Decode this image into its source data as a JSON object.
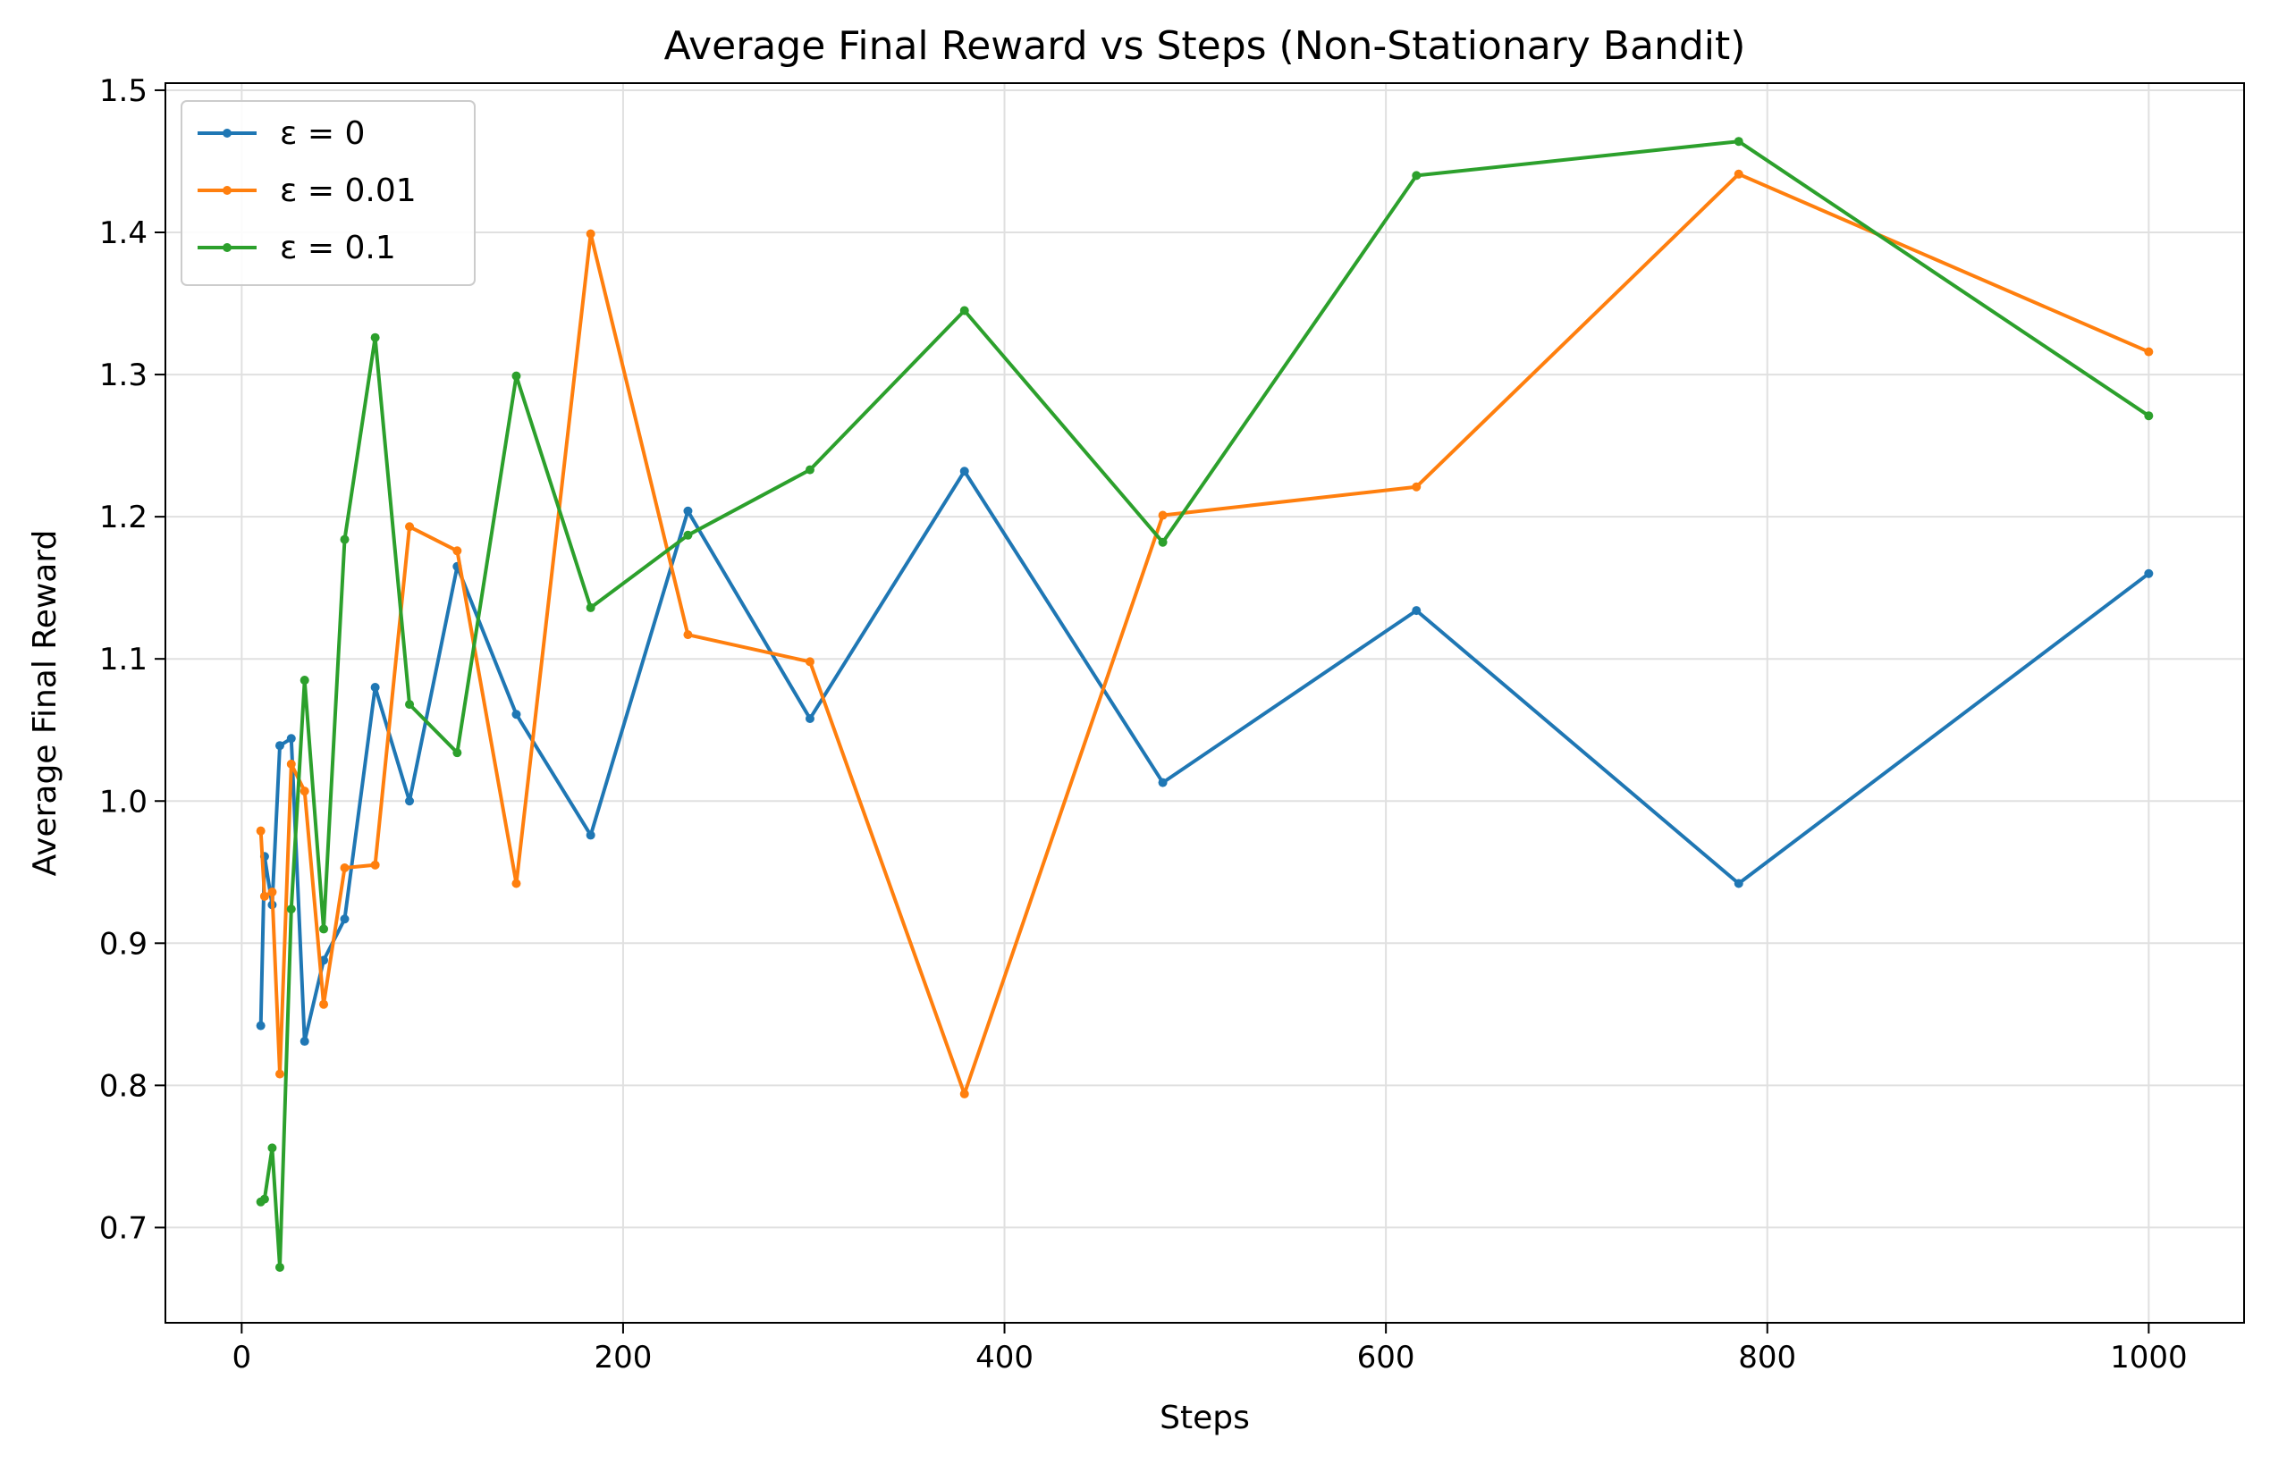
{
  "chart_data": {
    "type": "line",
    "title": "Average Final Reward vs Steps (Non-Stationary Bandit)",
    "xlabel": "Steps",
    "ylabel": "Average Final Reward",
    "xlim": [
      -40,
      1050
    ],
    "ylim": [
      0.633,
      1.505
    ],
    "xticks": [
      0,
      200,
      400,
      600,
      800,
      1000
    ],
    "xtick_labels": [
      "0",
      "200",
      "400",
      "600",
      "800",
      "1000"
    ],
    "yticks": [
      0.7,
      0.8,
      0.9,
      1.0,
      1.1,
      1.2,
      1.3,
      1.4,
      1.5
    ],
    "ytick_labels": [
      "0.7",
      "0.8",
      "0.9",
      "1.0",
      "1.1",
      "1.2",
      "1.3",
      "1.4",
      "1.5"
    ],
    "grid": true,
    "legend_position": "top-left",
    "x": [
      10,
      12,
      16,
      20,
      26,
      33,
      43,
      54,
      70,
      88,
      113,
      144,
      183,
      234,
      298,
      379,
      483,
      616,
      785,
      1000
    ],
    "series": [
      {
        "name": "ε = 0",
        "color": "#1f77b4",
        "values": [
          0.842,
          0.961,
          0.927,
          1.039,
          1.044,
          0.831,
          0.888,
          0.917,
          1.08,
          1.0,
          1.165,
          1.061,
          0.976,
          1.204,
          1.058,
          1.232,
          1.013,
          1.134,
          0.942,
          1.16
        ]
      },
      {
        "name": "ε = 0.01",
        "color": "#ff7f0e",
        "values": [
          0.979,
          0.933,
          0.936,
          0.808,
          1.026,
          1.007,
          0.857,
          0.953,
          0.955,
          1.193,
          1.176,
          0.942,
          1.399,
          1.117,
          1.098,
          0.794,
          1.201,
          1.221,
          1.441,
          1.316
        ]
      },
      {
        "name": "ε = 0.1",
        "color": "#2ca02c",
        "values": [
          0.718,
          0.72,
          0.756,
          0.672,
          0.924,
          1.085,
          0.91,
          1.184,
          1.326,
          1.068,
          1.034,
          1.299,
          1.136,
          1.187,
          1.233,
          1.345,
          1.182,
          1.44,
          1.464,
          1.271
        ]
      }
    ]
  }
}
